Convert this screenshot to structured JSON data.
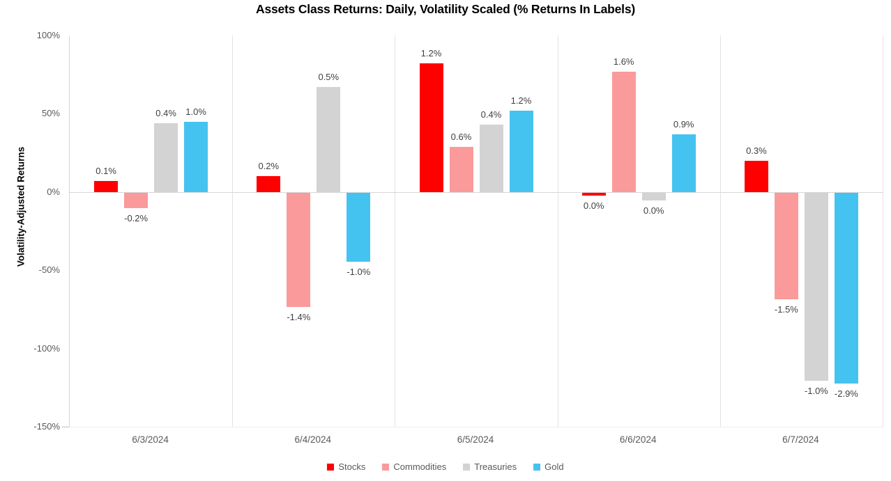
{
  "chart": {
    "title": "Assets Class Returns: Daily, Volatility Scaled (% Returns In Labels)",
    "y_axis_title": "Volatility-Adjusted Returns"
  },
  "chart_data": {
    "type": "bar",
    "title": "Assets Class Returns: Daily, Volatility Scaled (% Returns In Labels)",
    "xlabel": "",
    "ylabel": "Volatility-Adjusted Returns",
    "ylim": [
      -150,
      100
    ],
    "yticks": [
      100,
      50,
      0,
      -50,
      -100,
      -150
    ],
    "ytick_suffix": "%",
    "grid": "vertical category separators only, no horizontal gridlines",
    "legend_position": "bottom",
    "categories": [
      "6/3/2024",
      "6/4/2024",
      "6/5/2024",
      "6/6/2024",
      "6/7/2024"
    ],
    "series": [
      {
        "name": "Stocks",
        "color": "#FF0000",
        "scaled_values_pct": [
          7,
          10,
          82,
          -2,
          20
        ],
        "labels": [
          "0.1%",
          "0.2%",
          "1.2%",
          "0.0%",
          "0.3%"
        ]
      },
      {
        "name": "Commodities",
        "color": "#FB9A9A",
        "scaled_values_pct": [
          -10,
          -73,
          29,
          77,
          -68
        ],
        "labels": [
          "-0.2%",
          "-1.4%",
          "0.6%",
          "1.6%",
          "-1.5%"
        ]
      },
      {
        "name": "Treasuries",
        "color": "#D3D3D3",
        "scaled_values_pct": [
          44,
          67,
          43,
          -5,
          -120
        ],
        "labels": [
          "0.4%",
          "0.5%",
          "0.4%",
          "0.0%",
          "-1.0%"
        ]
      },
      {
        "name": "Gold",
        "color": "#45C3F0",
        "scaled_values_pct": [
          45,
          -44,
          52,
          37,
          -122
        ],
        "labels": [
          "1.0%",
          "-1.0%",
          "1.2%",
          "0.9%",
          "-2.9%"
        ]
      }
    ]
  }
}
